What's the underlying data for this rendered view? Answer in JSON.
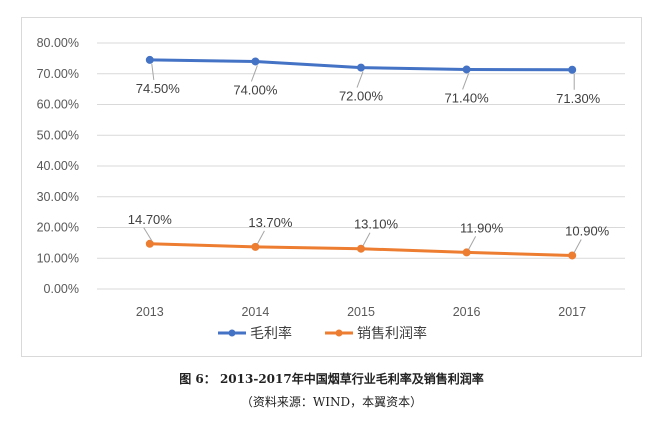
{
  "chart_data": {
    "type": "line",
    "categories": [
      "2013",
      "2014",
      "2015",
      "2016",
      "2017"
    ],
    "series": [
      {
        "name": "毛利率",
        "values": [
          74.5,
          74.0,
          72.0,
          71.4,
          71.3
        ],
        "labels": [
          "74.50%",
          "74.00%",
          "72.00%",
          "71.40%",
          "71.30%"
        ],
        "color": "#4472C4"
      },
      {
        "name": "销售利润率",
        "values": [
          14.7,
          13.7,
          13.1,
          11.9,
          10.9
        ],
        "labels": [
          "14.70%",
          "13.70%",
          "13.10%",
          "11.90%",
          "10.90%"
        ],
        "color": "#ED7D31"
      }
    ],
    "ylim": [
      0,
      80
    ],
    "yticks": [
      "0.00%",
      "10.00%",
      "20.00%",
      "30.00%",
      "40.00%",
      "50.00%",
      "60.00%",
      "70.00%",
      "80.00%"
    ],
    "grid": true,
    "legend": "bottom"
  },
  "caption": "图 6： 2013-2017年中国烟草行业毛利率及销售利润率",
  "source": "（资料来源：WIND，本翼资本）"
}
